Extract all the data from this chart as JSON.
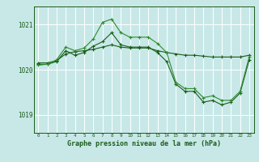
{
  "bg_color": "#c8e8e8",
  "grid_color": "#ffffff",
  "line_color_dark": "#1a5c1a",
  "line_color_mid": "#2d8b2d",
  "xlabel": "Graphe pression niveau de la mer (hPa)",
  "ylabel_ticks": [
    1019,
    1020,
    1021
  ],
  "xticks": [
    0,
    1,
    2,
    3,
    4,
    5,
    6,
    7,
    8,
    9,
    10,
    11,
    12,
    13,
    14,
    15,
    16,
    17,
    18,
    19,
    20,
    21,
    22,
    23
  ],
  "xlim": [
    -0.5,
    23.5
  ],
  "ylim": [
    1018.6,
    1021.4
  ],
  "series1_y": [
    1020.15,
    1020.15,
    1020.2,
    1020.35,
    1020.4,
    1020.42,
    1020.45,
    1020.5,
    1020.55,
    1020.5,
    1020.48,
    1020.48,
    1020.48,
    1020.42,
    1020.38,
    1020.35,
    1020.32,
    1020.32,
    1020.3,
    1020.28,
    1020.28,
    1020.28,
    1020.28,
    1020.32
  ],
  "series2_y": [
    1020.1,
    1020.12,
    1020.22,
    1020.5,
    1020.42,
    1020.48,
    1020.68,
    1021.05,
    1021.12,
    1020.82,
    1020.72,
    1020.72,
    1020.72,
    1020.58,
    1020.38,
    1019.72,
    1019.58,
    1019.58,
    1019.38,
    1019.42,
    1019.32,
    1019.32,
    1019.52,
    1020.28
  ],
  "series3_y": [
    1020.12,
    1020.12,
    1020.18,
    1020.42,
    1020.32,
    1020.38,
    1020.52,
    1020.62,
    1020.82,
    1020.55,
    1020.5,
    1020.5,
    1020.5,
    1020.38,
    1020.18,
    1019.68,
    1019.52,
    1019.52,
    1019.28,
    1019.32,
    1019.22,
    1019.28,
    1019.48,
    1020.22
  ]
}
